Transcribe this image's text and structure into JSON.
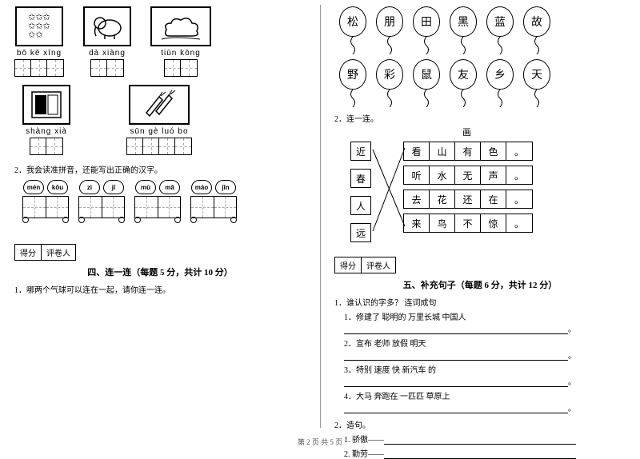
{
  "footer": "第 2 页 共 5 页",
  "left": {
    "row1": [
      {
        "pinyin": "bō  kē  xīng",
        "cells": 3,
        "icon": "✩✩✩"
      },
      {
        "pinyin": "dà  xiàng",
        "cells": 2,
        "icon": "🐘"
      },
      {
        "pinyin": "tiūn  kōng",
        "cells": 2,
        "icon": "☁"
      }
    ],
    "row2": [
      {
        "pinyin": "shàng  xià",
        "cells": 2,
        "icon": "▤"
      },
      {
        "pinyin": "sūn  gè  luó  bo",
        "cells": 4,
        "icon": "🥕"
      }
    ],
    "q2_intro": "2．我会读准拼音，还能写出正确的汉字。",
    "cars": [
      [
        "mén",
        "kǒu"
      ],
      [
        "zì",
        "jǐ"
      ],
      [
        "mù",
        "mǎ"
      ],
      [
        "máo",
        "jīn"
      ]
    ],
    "score_labels": [
      "得分",
      "评卷人"
    ],
    "section4_title": "四、连一连（每题 5 分，共计 10 分）",
    "q4_1": "1．哪两个气球可以连在一起，请你连一连。"
  },
  "right": {
    "balloons_top": [
      "松",
      "朋",
      "田",
      "黑",
      "蓝",
      "故"
    ],
    "balloons_bot": [
      "野",
      "彩",
      "鼠",
      "友",
      "乡",
      "天"
    ],
    "q2_label": "2．连一连。",
    "poem_title": "画",
    "side": [
      "近",
      "春",
      "人",
      "远"
    ],
    "poem": [
      [
        "看",
        "山",
        "有",
        "色",
        "。"
      ],
      [
        "听",
        "水",
        "无",
        "声",
        "。"
      ],
      [
        "去",
        "花",
        "还",
        "在",
        "。"
      ],
      [
        "来",
        "鸟",
        "不",
        "惊",
        "。"
      ]
    ],
    "score_labels": [
      "得分",
      "评卷人"
    ],
    "section5_title": "五、补充句子（每题 6 分，共计 12 分）",
    "q5_1_head": "1．谁认识的字多？ 连词成句",
    "q5_items": [
      "1．修建了  聪明的  万里长城  中国人",
      "2．宣布  老师  放假  明天",
      "3．特别  速度  快  新汽车  的",
      "4．大马  奔跑在  一匹匹  草原上"
    ],
    "q5_2_head": "2．造句。",
    "q5_2_items": [
      "1. 骄傲——",
      "2. 勤劳——"
    ]
  },
  "colors": {
    "line": "#000000",
    "dash": "#aaaaaa",
    "bg": "#ffffff"
  }
}
